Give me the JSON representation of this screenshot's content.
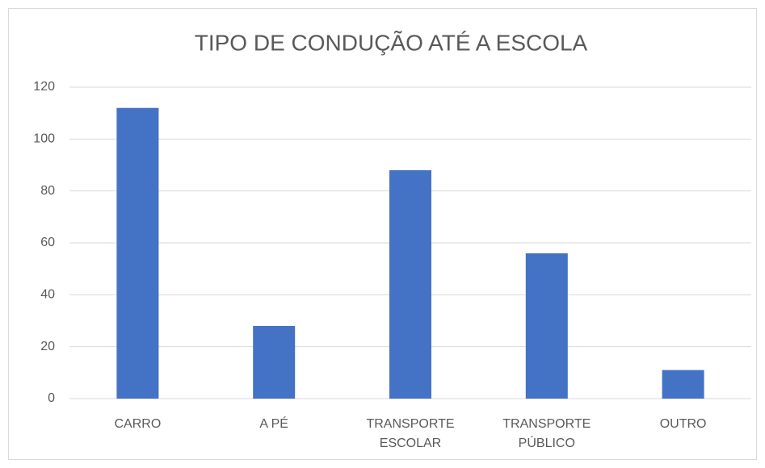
{
  "chart_data": {
    "type": "bar",
    "title": "TIPO DE CONDUÇÃO ATÉ A ESCOLA",
    "categories": [
      "CARRO",
      "A PÉ",
      "TRANSPORTE ESCOLAR",
      "TRANSPORTE PÚBLICO",
      "OUTRO"
    ],
    "values": [
      112,
      28,
      88,
      56,
      11
    ],
    "color": "#4472c4",
    "ylim": [
      0,
      120
    ],
    "yticks": [
      0,
      20,
      40,
      60,
      80,
      100,
      120
    ],
    "grid": true
  }
}
